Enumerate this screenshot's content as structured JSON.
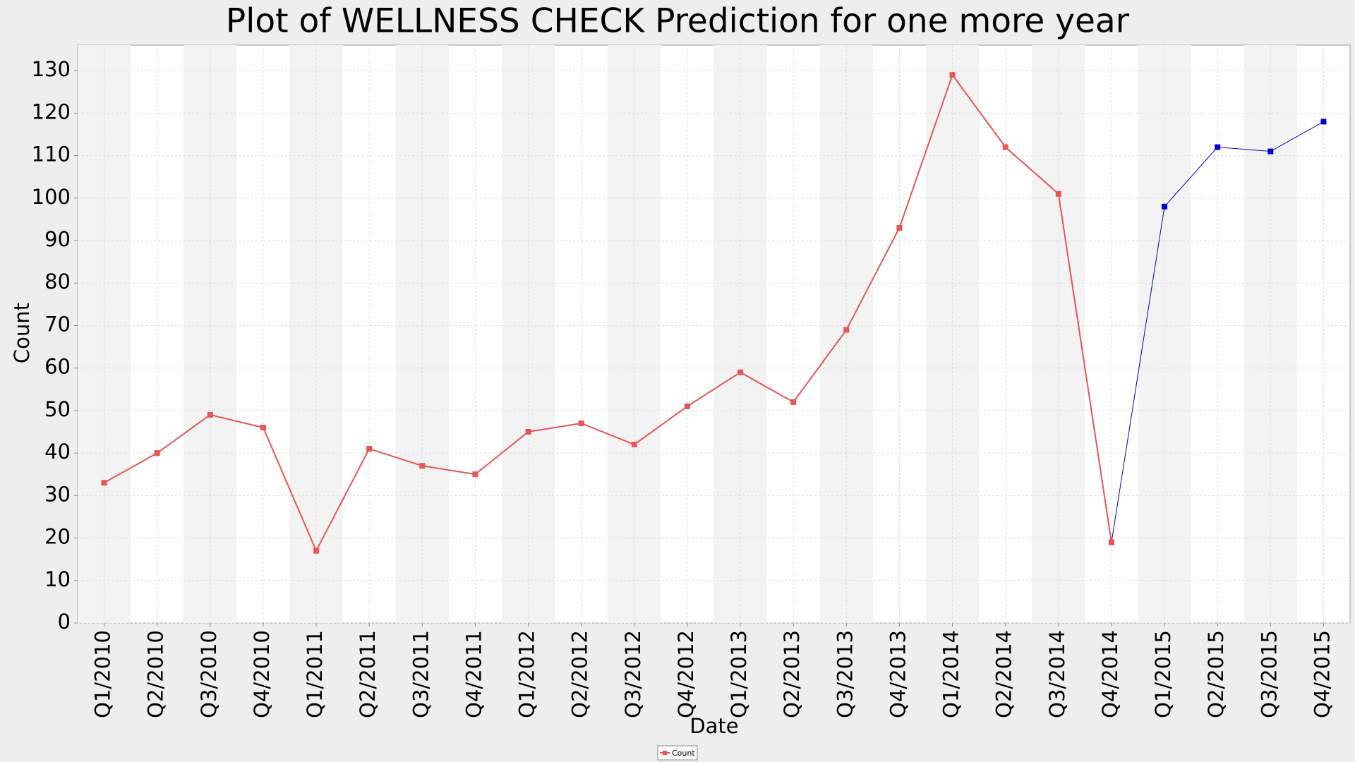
{
  "chart_data": {
    "type": "line",
    "title": "Plot of WELLNESS CHECK Prediction for one more year",
    "x_label": "Date",
    "y_label": "Count",
    "categories": [
      "Q1/2010",
      "Q2/2010",
      "Q3/2010",
      "Q4/2010",
      "Q1/2011",
      "Q2/2011",
      "Q3/2011",
      "Q4/2011",
      "Q1/2012",
      "Q2/2012",
      "Q3/2012",
      "Q4/2012",
      "Q1/2013",
      "Q2/2013",
      "Q3/2013",
      "Q4/2013",
      "Q1/2014",
      "Q2/2014",
      "Q3/2014",
      "Q4/2014",
      "Q1/2015",
      "Q2/2015",
      "Q3/2015",
      "Q4/2015"
    ],
    "series": [
      {
        "name": "Count",
        "color": "#e85555",
        "values": [
          33,
          40,
          49,
          46,
          17,
          41,
          37,
          35,
          45,
          47,
          42,
          51,
          59,
          52,
          69,
          93,
          129,
          112,
          101,
          19,
          null,
          null,
          null,
          null
        ]
      },
      {
        "color": "#0000cc",
        "values": [
          null,
          null,
          null,
          null,
          null,
          null,
          null,
          null,
          null,
          null,
          null,
          null,
          null,
          null,
          null,
          null,
          null,
          null,
          null,
          19,
          98,
          112,
          111,
          118
        ]
      }
    ],
    "ylim": [
      0,
      136
    ],
    "yticks": [
      0,
      10,
      20,
      30,
      40,
      50,
      60,
      70,
      80,
      90,
      100,
      110,
      120,
      130
    ],
    "grid": true,
    "legend": "bottom"
  }
}
